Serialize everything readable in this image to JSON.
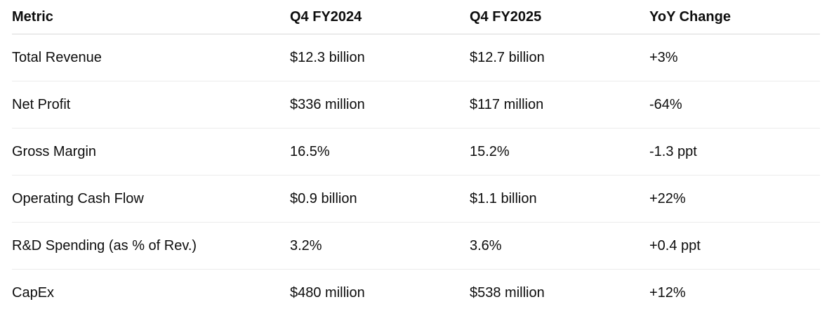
{
  "table": {
    "headers": [
      "Metric",
      "Q4 FY2024",
      "Q4 FY2025",
      "YoY Change"
    ],
    "rows": [
      [
        "Total Revenue",
        "$12.3 billion",
        "$12.7 billion",
        "+3%"
      ],
      [
        "Net Profit",
        "$336 million",
        "$117 million",
        "-64%"
      ],
      [
        "Gross Margin",
        "16.5%",
        "15.2%",
        "-1.3 ppt"
      ],
      [
        "Operating Cash Flow",
        "$0.9 billion",
        "$1.1 billion",
        "+22%"
      ],
      [
        "R&D Spending (as % of Rev.)",
        "3.2%",
        "3.6%",
        "+0.4 ppt"
      ],
      [
        "CapEx",
        "$480 million",
        "$538 million",
        "+12%"
      ]
    ]
  }
}
